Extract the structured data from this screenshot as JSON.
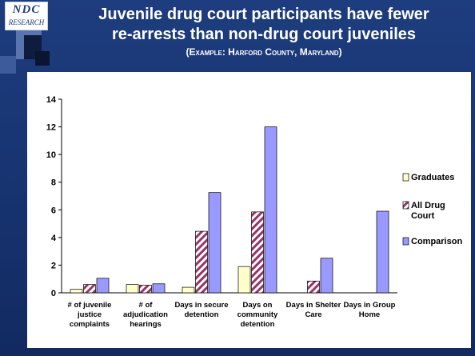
{
  "header": {
    "logo_top": "NDC",
    "logo_bottom": "RESEARCH",
    "title_line1": "Juvenile drug court participants have fewer",
    "title_line2": "re-arrests than non-drug court juveniles",
    "subtitle": "(Example: Harford County, Maryland)"
  },
  "chart_data": {
    "type": "bar",
    "categories": [
      [
        "# of juvenile",
        "justice",
        "complaints"
      ],
      [
        "# of",
        "adjudication",
        "hearings"
      ],
      [
        "Days in secure",
        "detention"
      ],
      [
        "Days on",
        "community",
        "detention"
      ],
      [
        "Days in Shelter",
        "Care"
      ],
      [
        "Days in Group",
        "Home"
      ]
    ],
    "series": [
      {
        "name": "Graduates",
        "values": [
          0.25,
          0.6,
          0.4,
          1.9,
          0,
          0
        ],
        "color": "#ffffcc",
        "pattern": "solid"
      },
      {
        "name": "All Drug Court",
        "values": [
          0.6,
          0.55,
          4.45,
          5.85,
          0.85,
          0
        ],
        "color": "#993366",
        "pattern": "diagonal-stripe"
      },
      {
        "name": "Comparison",
        "values": [
          1.05,
          0.65,
          7.25,
          12,
          2.5,
          5.9
        ],
        "color": "#9999ff",
        "pattern": "solid"
      }
    ],
    "ylim": [
      0,
      14
    ],
    "yticks": [
      0,
      2,
      4,
      6,
      8,
      10,
      12,
      14
    ],
    "ytick_labels": [
      "0",
      "2",
      "4",
      "6",
      "8",
      "10",
      "12",
      "14"
    ],
    "legend_position": "right",
    "legend_labels": [
      [
        "Graduates"
      ],
      [
        "All Drug",
        "Court"
      ],
      [
        "Comparison"
      ]
    ],
    "grid": false
  }
}
